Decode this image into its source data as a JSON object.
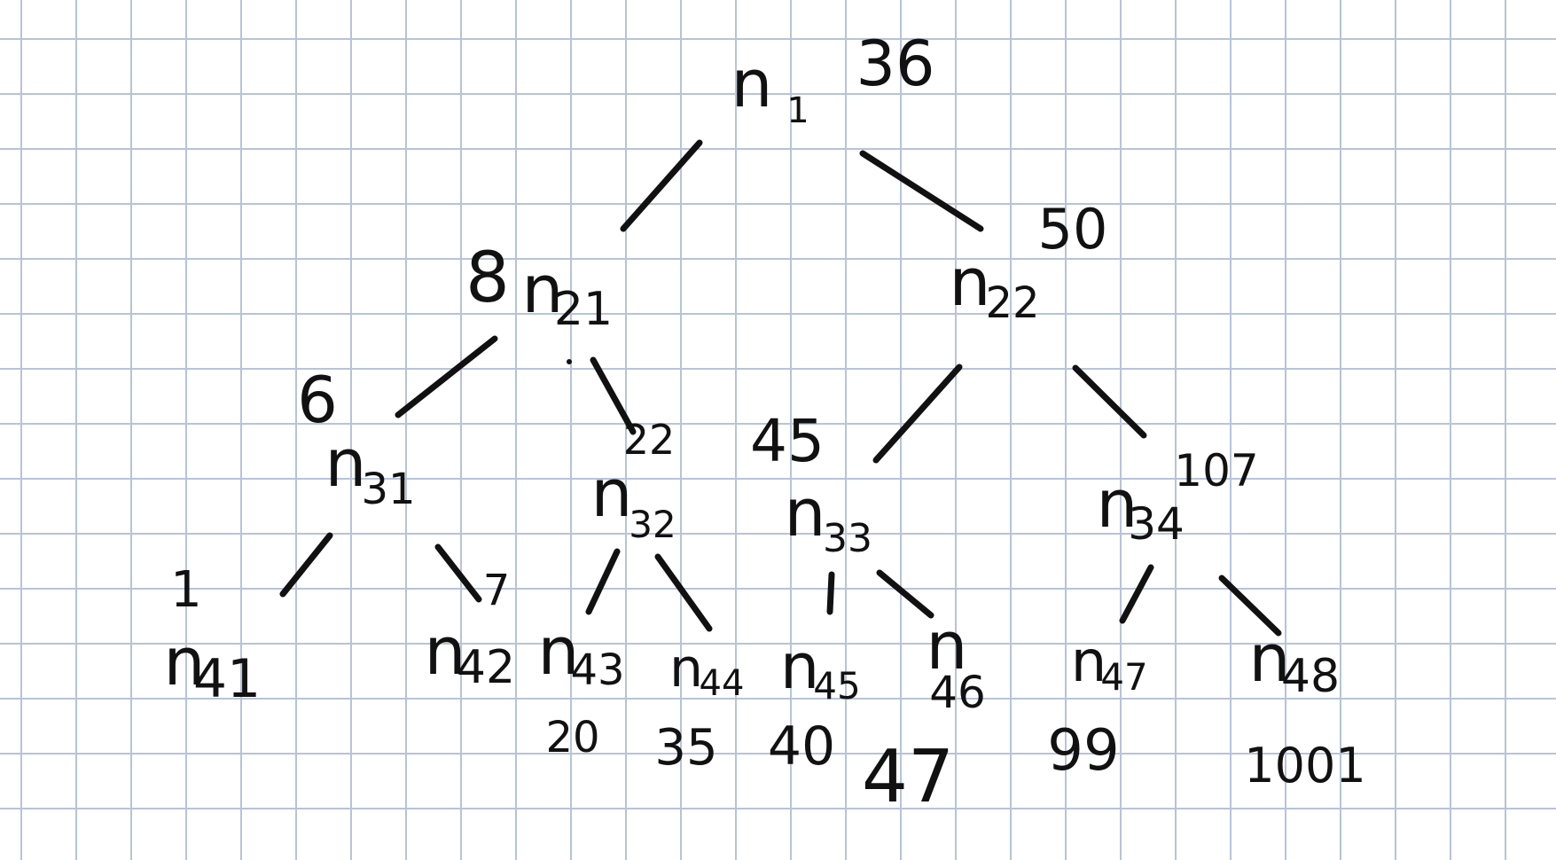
{
  "paper": {
    "background_color": "#ffffff",
    "grid_color": "#b7c3d9",
    "ink_color": "#111111"
  },
  "tree": {
    "nodes": [
      {
        "id": "n1",
        "base": "n",
        "sub": "1",
        "value": "36"
      },
      {
        "id": "n21",
        "base": "n",
        "sub": "21",
        "value": "8"
      },
      {
        "id": "n22",
        "base": "n",
        "sub": "22",
        "value": "50"
      },
      {
        "id": "n31",
        "base": "n",
        "sub": "31",
        "value": "6"
      },
      {
        "id": "n32",
        "base": "n",
        "sub": "32",
        "value": "22"
      },
      {
        "id": "n33",
        "base": "n",
        "sub": "33",
        "value": "45"
      },
      {
        "id": "n34",
        "base": "n",
        "sub": "34",
        "value": "107"
      },
      {
        "id": "n41",
        "base": "n",
        "sub": "41",
        "value": "1"
      },
      {
        "id": "n42",
        "base": "n",
        "sub": "42",
        "value": "7"
      },
      {
        "id": "n43",
        "base": "n",
        "sub": "43",
        "value": "20"
      },
      {
        "id": "n44",
        "base": "n",
        "sub": "44",
        "value": "35"
      },
      {
        "id": "n45",
        "base": "n",
        "sub": "45",
        "value": "40"
      },
      {
        "id": "n46",
        "base": "n",
        "sub": "46",
        "value": "47"
      },
      {
        "id": "n47",
        "base": "n",
        "sub": "47",
        "value": "99"
      },
      {
        "id": "n48",
        "base": "n",
        "sub": "48",
        "value": "1001"
      }
    ],
    "edges": [
      {
        "from": "n1",
        "to": "n21"
      },
      {
        "from": "n1",
        "to": "n22"
      },
      {
        "from": "n21",
        "to": "n31"
      },
      {
        "from": "n21",
        "to": "n32"
      },
      {
        "from": "n22",
        "to": "n33"
      },
      {
        "from": "n22",
        "to": "n34"
      },
      {
        "from": "n31",
        "to": "n41"
      },
      {
        "from": "n31",
        "to": "n42"
      },
      {
        "from": "n32",
        "to": "n43"
      },
      {
        "from": "n32",
        "to": "n44"
      },
      {
        "from": "n33",
        "to": "n45"
      },
      {
        "from": "n33",
        "to": "n46"
      },
      {
        "from": "n34",
        "to": "n47"
      },
      {
        "from": "n34",
        "to": "n48"
      }
    ],
    "stray_marks": [
      {
        "id": "dot-near-n21"
      },
      {
        "id": "tick-near-n45"
      }
    ]
  }
}
